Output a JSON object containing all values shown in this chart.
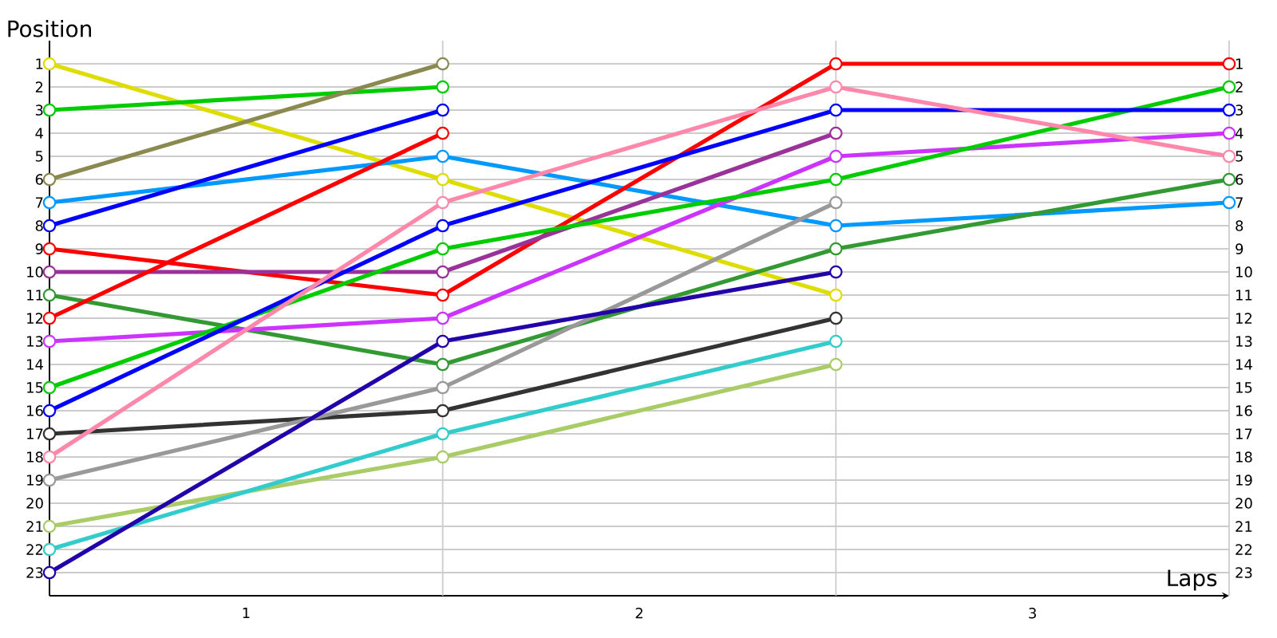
{
  "chart_data": {
    "type": "line",
    "xlabel": "Laps",
    "ylabel": "Position",
    "x": [
      0,
      1,
      2,
      3
    ],
    "xlim": [
      0,
      3
    ],
    "xticks": [
      {
        "value": 0.5,
        "label": "1"
      },
      {
        "value": 1,
        "label": null
      },
      {
        "value": 1.5,
        "label": "2"
      },
      {
        "value": 2,
        "label": null
      },
      {
        "value": 2.5,
        "label": "3"
      },
      {
        "value": 3,
        "label": null
      }
    ],
    "ylim": [
      24,
      0
    ],
    "yticks": [
      1,
      2,
      3,
      4,
      5,
      6,
      7,
      8,
      9,
      10,
      11,
      12,
      13,
      14,
      15,
      16,
      17,
      18,
      19,
      20,
      21,
      22,
      23
    ],
    "y2lim": [
      24,
      0
    ],
    "y2ticks": [
      1,
      2,
      3,
      4,
      5,
      6,
      7,
      8,
      9,
      10,
      11,
      12,
      13,
      14,
      15,
      16,
      17,
      18,
      19,
      20,
      21,
      22,
      23
    ],
    "grid": true,
    "marker": "circle",
    "legend": false,
    "series": [
      {
        "color": "#dddd00",
        "values": [
          1,
          6,
          11,
          null
        ]
      },
      {
        "color": "#00cc00",
        "values": [
          3,
          2,
          null,
          null
        ]
      },
      {
        "color": "#8a8a50",
        "values": [
          6,
          1,
          null,
          null
        ]
      },
      {
        "color": "#0099ff",
        "values": [
          7,
          5,
          8,
          7
        ]
      },
      {
        "color": "#0000ff",
        "values": [
          8,
          3,
          null,
          null
        ]
      },
      {
        "color": "#ff0000",
        "values": [
          9,
          11,
          1,
          1
        ]
      },
      {
        "color": "#993399",
        "values": [
          10,
          10,
          4,
          null
        ]
      },
      {
        "color": "#339933",
        "values": [
          11,
          14,
          9,
          6
        ]
      },
      {
        "color": "#ff0000",
        "values": [
          12,
          4,
          null,
          null
        ]
      },
      {
        "color": "#cc33ff",
        "values": [
          13,
          12,
          5,
          4
        ]
      },
      {
        "color": "#00cc00",
        "values": [
          15,
          9,
          6,
          2
        ]
      },
      {
        "color": "#0000ff",
        "values": [
          16,
          8,
          3,
          3
        ]
      },
      {
        "color": "#333333",
        "values": [
          17,
          16,
          12,
          null
        ]
      },
      {
        "color": "#ff88aa",
        "values": [
          18,
          7,
          2,
          5
        ]
      },
      {
        "color": "#999999",
        "values": [
          19,
          15,
          7,
          null
        ]
      },
      {
        "color": "#aacc66",
        "values": [
          21,
          18,
          14,
          null
        ]
      },
      {
        "color": "#33cccc",
        "values": [
          22,
          17,
          13,
          null
        ]
      },
      {
        "color": "#2200aa",
        "values": [
          23,
          13,
          10,
          null
        ]
      }
    ]
  }
}
